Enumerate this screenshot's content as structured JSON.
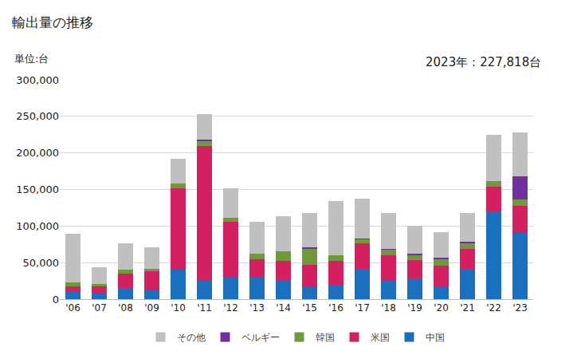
{
  "chart_data": {
    "type": "bar",
    "title": "輸出量の推移",
    "ylabel": "単位:台",
    "annotations": [
      "2023年：227,818台"
    ],
    "stacked": true,
    "grid": true,
    "legend": "bottom",
    "categories": [
      "'06",
      "'07",
      "'08",
      "'09",
      "'10",
      "'11",
      "'12",
      "'13",
      "'14",
      "'15",
      "'16",
      "'17",
      "'18",
      "'19",
      "'20",
      "'21",
      "'22",
      "'23"
    ],
    "series": [
      {
        "name": "中国",
        "color": "#1a6fbf",
        "values": [
          10000,
          9000,
          15000,
          13000,
          40000,
          26000,
          31000,
          31000,
          26000,
          16000,
          20000,
          42000,
          25000,
          28000,
          17000,
          42000,
          120000,
          91000
        ]
      },
      {
        "name": "米国",
        "color": "#d42060",
        "values": [
          8000,
          8000,
          20000,
          25000,
          112000,
          184000,
          75000,
          24000,
          26000,
          31000,
          32000,
          34000,
          35000,
          25000,
          29000,
          27000,
          34000,
          37000
        ]
      },
      {
        "name": "韓国",
        "color": "#6f9a3a",
        "values": [
          5000,
          4000,
          5000,
          4000,
          6000,
          6000,
          5000,
          7000,
          14000,
          22000,
          8000,
          6000,
          8000,
          7000,
          9000,
          8000,
          8000,
          8000
        ]
      },
      {
        "name": "ベルギー",
        "color": "#7030a0",
        "values": [
          0,
          0,
          0,
          0,
          0,
          2000,
          0,
          0,
          0,
          2000,
          0,
          1000,
          1000,
          2000,
          2000,
          2000,
          0,
          32000
        ]
      },
      {
        "name": "その他",
        "color": "#c0c0c0",
        "values": [
          67000,
          23000,
          36000,
          29000,
          34000,
          35000,
          41000,
          44000,
          48000,
          47000,
          74000,
          54000,
          49000,
          38000,
          35000,
          39000,
          63000,
          60000
        ]
      }
    ],
    "ylim": [
      0,
      300000
    ],
    "yticks": [
      0,
      {
        "value": 50000,
        "label": "50,000"
      },
      {
        "value": 100000,
        "label": "100,000"
      },
      {
        "value": 150000,
        "label": "150,000"
      },
      {
        "value": 200000,
        "label": "200,000"
      },
      {
        "value": 250000,
        "label": "250,000"
      },
      {
        "value": 300000,
        "label": "300,000"
      }
    ]
  }
}
